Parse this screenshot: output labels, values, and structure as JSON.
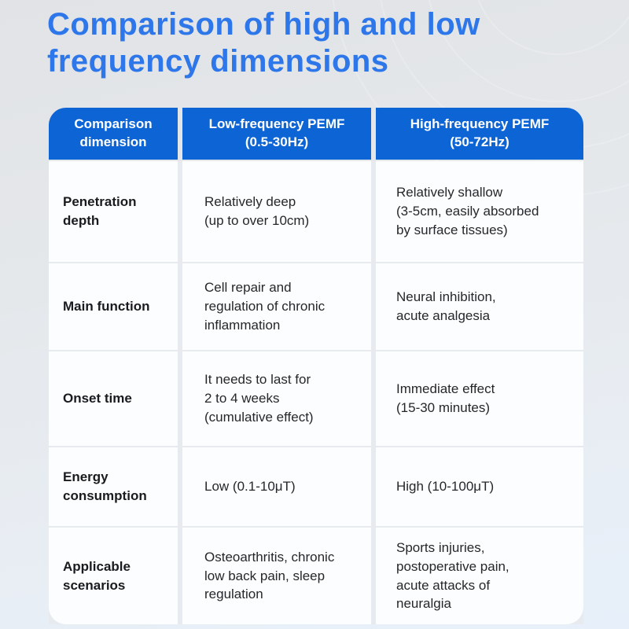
{
  "title": "Comparison of high and low\nfrequency dimensions",
  "table": {
    "headers": [
      "Comparison\ndimension",
      "Low-frequency PEMF\n(0.5-30Hz)",
      "High-frequency PEMF\n(50-72Hz)"
    ],
    "rows": [
      {
        "dimension": "Penetration\ndepth",
        "low": "Relatively deep\n(up to over 10cm)",
        "high": "Relatively shallow\n(3-5cm, easily absorbed\nby surface tissues)"
      },
      {
        "dimension": "Main function",
        "low": "Cell repair and\nregulation of chronic\ninflammation",
        "high": "Neural inhibition,\nacute analgesia"
      },
      {
        "dimension": "Onset time",
        "low": "It needs to last for\n2 to 4 weeks\n(cumulative effect)",
        "high": "Immediate effect\n(15-30 minutes)"
      },
      {
        "dimension": "Energy\nconsumption",
        "low": "Low (0.1-10μT)",
        "high": "High (10-100μT)"
      },
      {
        "dimension": "Applicable\nscenarios",
        "low": "Osteoarthritis, chronic\nlow back pain, sleep\nregulation",
        "high": "Sports injuries,\npostoperative pain,\nacute attacks of\nneuralgia"
      }
    ]
  },
  "colors": {
    "title_blue": "#2e77ea",
    "header_blue": "#0d64d4",
    "body_text": "#26272a",
    "cell_background": "#fcfdfe",
    "page_background": "#e5e8eb"
  },
  "chart_data": {
    "type": "table",
    "title": "Comparison of high and low frequency dimensions",
    "columns": [
      "Comparison dimension",
      "Low-frequency PEMF (0.5-30Hz)",
      "High-frequency PEMF (50-72Hz)"
    ],
    "rows": [
      [
        "Penetration depth",
        "Relatively deep (up to over 10cm)",
        "Relatively shallow (3-5cm, easily absorbed by surface tissues)"
      ],
      [
        "Main function",
        "Cell repair and regulation of chronic inflammation",
        "Neural inhibition, acute analgesia"
      ],
      [
        "Onset time",
        "It needs to last for 2 to 4 weeks (cumulative effect)",
        "Immediate effect (15-30 minutes)"
      ],
      [
        "Energy consumption",
        "Low (0.1-10μT)",
        "High (10-100μT)"
      ],
      [
        "Applicable scenarios",
        "Osteoarthritis, chronic low back pain, sleep regulation",
        "Sports injuries, postoperative pain, acute attacks of neuralgia"
      ]
    ]
  }
}
